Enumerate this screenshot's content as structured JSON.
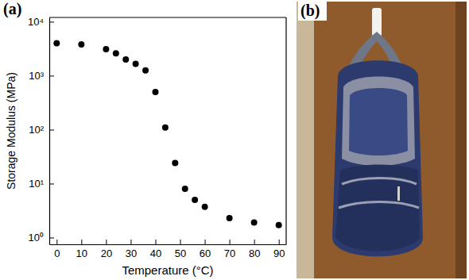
{
  "chart_data": {
    "type": "scatter",
    "panel_label": "(a)",
    "x_label": "Temperature (°C)",
    "y_label": "Storage Modulus (MPa)",
    "x": [
      0,
      10,
      20,
      24,
      28,
      32,
      36,
      40,
      44,
      48,
      52,
      56,
      60,
      70,
      80,
      90
    ],
    "values": [
      4000,
      3800,
      3100,
      2600,
      2000,
      1650,
      1250,
      500,
      110,
      24,
      8,
      5,
      3.7,
      2.3,
      1.9,
      1.7
    ],
    "xlim": [
      -3,
      93
    ],
    "xticks": [
      0,
      10,
      20,
      30,
      40,
      50,
      60,
      70,
      80,
      90
    ],
    "ylim": [
      0.75,
      12000
    ],
    "yticks": [
      {
        "value": 1,
        "label": "10⁰"
      },
      {
        "value": 10,
        "label": "10¹"
      },
      {
        "value": 100,
        "label": "10²"
      },
      {
        "value": 1000,
        "label": "10³"
      },
      {
        "value": 10000,
        "label": "10⁴"
      }
    ],
    "log": "y",
    "marker": "circle",
    "color": "#000000",
    "grid": false
  },
  "photo": {
    "panel_label": "(b)"
  }
}
